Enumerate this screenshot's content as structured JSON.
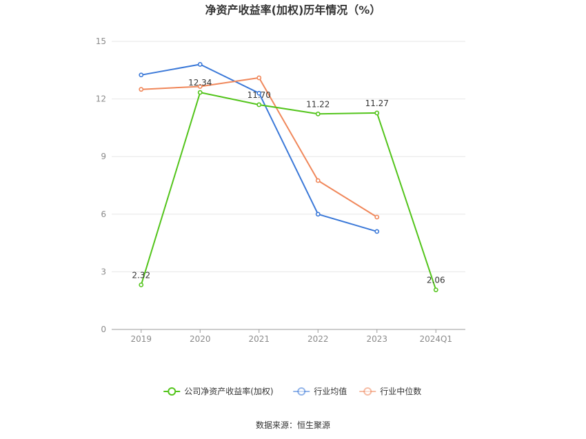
{
  "chart_data": {
    "type": "line",
    "title": "净资产收益率(加权)历年情况（%）",
    "categories": [
      "2019",
      "2020",
      "2021",
      "2022",
      "2023",
      "2024Q1"
    ],
    "ylim": [
      0,
      15
    ],
    "yticks": [
      0,
      3,
      6,
      9,
      12,
      15
    ],
    "grid": true,
    "legend_position": "bottom",
    "series": [
      {
        "name": "公司净资产收益率(加权)",
        "color": "#52c41a",
        "values": [
          2.32,
          12.34,
          11.7,
          11.22,
          11.27,
          2.06
        ],
        "data_labels": [
          "2.32",
          "12.34",
          "11.70",
          "11.22",
          "11.27",
          "2.06"
        ]
      },
      {
        "name": "行业均值",
        "color": "#3a78d8",
        "values": [
          13.25,
          13.8,
          12.3,
          6.0,
          5.1,
          null
        ]
      },
      {
        "name": "行业中位数",
        "color": "#f0875a",
        "values": [
          12.5,
          12.65,
          13.1,
          7.75,
          5.85,
          null
        ]
      }
    ]
  },
  "source_text": "数据来源：恒生聚源"
}
